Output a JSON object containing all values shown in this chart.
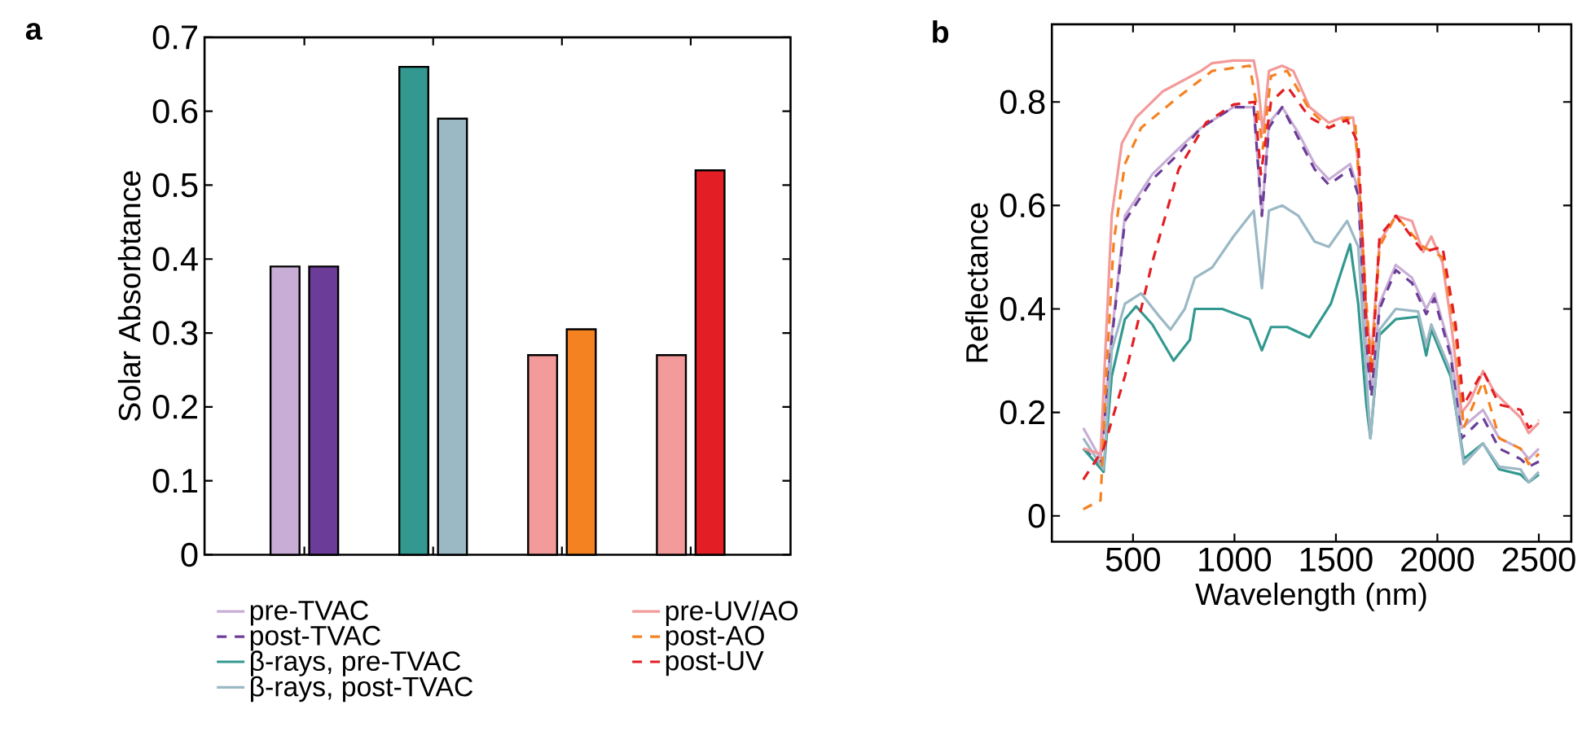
{
  "chart_data": [
    {
      "type": "bar",
      "title": "a",
      "ylabel": "Solar Absorbtance",
      "categories": [
        null,
        null,
        null,
        null
      ],
      "ylim": [
        0,
        0.7
      ],
      "yticks": [
        0,
        0.1,
        0.2,
        0.3,
        0.4,
        0.5,
        0.6,
        0.7
      ],
      "series": [
        {
          "colors": [
            "#c8aed6",
            "#339990",
            "#f39a9a",
            "#f39a9a"
          ],
          "values": [
            0.39,
            0.66,
            0.27,
            0.27
          ]
        },
        {
          "colors": [
            "#6b3d98",
            "#9bb8c5",
            "#f58220",
            "#e31e24"
          ],
          "values": [
            0.39,
            0.59,
            0.305,
            0.52
          ]
        }
      ]
    },
    {
      "type": "line",
      "title": "b",
      "xlabel": "Wavelength (nm)",
      "ylabel": "Reflectance",
      "xlim": [
        100,
        2660
      ],
      "ylim": [
        -0.05,
        0.95
      ],
      "xticks": [
        500,
        1000,
        1500,
        2000,
        2500
      ],
      "yticks": [
        0,
        0.2,
        0.4,
        0.6,
        0.8
      ],
      "legend": "bottom left",
      "series": [
        {
          "name": "pre-TVAC",
          "color": "#c8aed6",
          "line_style": "solid",
          "x": [
            255,
            340,
            395,
            460,
            595,
            725,
            835,
            995,
            1095,
            1135,
            1170,
            1235,
            1315,
            1395,
            1465,
            1570,
            1610,
            1650,
            1675,
            1715,
            1795,
            1875,
            1945,
            1985,
            2065,
            2120,
            2225,
            2305,
            2410,
            2450,
            2500
          ],
          "values": [
            0.17,
            0.11,
            0.35,
            0.58,
            0.66,
            0.71,
            0.75,
            0.79,
            0.79,
            0.58,
            0.76,
            0.79,
            0.74,
            0.68,
            0.65,
            0.68,
            0.63,
            0.33,
            0.24,
            0.41,
            0.485,
            0.46,
            0.4,
            0.43,
            0.32,
            0.17,
            0.205,
            0.15,
            0.13,
            0.11,
            0.13
          ]
        },
        {
          "name": "post-TVAC",
          "color": "#6b3d98",
          "line_style": "dashed",
          "x": [
            255,
            340,
            395,
            460,
            595,
            725,
            835,
            995,
            1095,
            1135,
            1170,
            1235,
            1315,
            1395,
            1465,
            1570,
            1610,
            1650,
            1675,
            1715,
            1795,
            1875,
            1945,
            1985,
            2065,
            2120,
            2225,
            2305,
            2410,
            2450,
            2500
          ],
          "values": [
            0.13,
            0.1,
            0.34,
            0.57,
            0.65,
            0.7,
            0.75,
            0.79,
            0.79,
            0.58,
            0.75,
            0.79,
            0.73,
            0.67,
            0.64,
            0.67,
            0.62,
            0.32,
            0.23,
            0.4,
            0.475,
            0.45,
            0.39,
            0.42,
            0.31,
            0.15,
            0.19,
            0.13,
            0.11,
            0.095,
            0.105
          ]
        },
        {
          "name": "β-rays, pre-TVAC",
          "color": "#339990",
          "line_style": "solid",
          "x": [
            255,
            355,
            395,
            460,
            515,
            595,
            700,
            780,
            805,
            940,
            1075,
            1135,
            1180,
            1260,
            1370,
            1475,
            1570,
            1610,
            1650,
            1670,
            1715,
            1795,
            1905,
            1945,
            1970,
            2065,
            2130,
            2225,
            2305,
            2410,
            2450,
            2500
          ],
          "values": [
            0.13,
            0.085,
            0.27,
            0.38,
            0.405,
            0.37,
            0.3,
            0.34,
            0.4,
            0.4,
            0.38,
            0.32,
            0.365,
            0.365,
            0.345,
            0.41,
            0.525,
            0.41,
            0.215,
            0.15,
            0.35,
            0.38,
            0.385,
            0.31,
            0.36,
            0.27,
            0.11,
            0.14,
            0.09,
            0.08,
            0.065,
            0.08
          ]
        },
        {
          "name": "β-rays, post-TVAC",
          "color": "#9bb8c5",
          "line_style": "solid",
          "x": [
            255,
            355,
            395,
            460,
            540,
            620,
            685,
            755,
            805,
            890,
            995,
            1095,
            1135,
            1170,
            1235,
            1315,
            1395,
            1465,
            1555,
            1610,
            1650,
            1670,
            1715,
            1795,
            1905,
            1945,
            1970,
            2065,
            2130,
            2225,
            2305,
            2410,
            2450,
            2500
          ],
          "values": [
            0.15,
            0.09,
            0.32,
            0.41,
            0.43,
            0.39,
            0.36,
            0.4,
            0.46,
            0.48,
            0.54,
            0.59,
            0.44,
            0.59,
            0.6,
            0.58,
            0.53,
            0.52,
            0.57,
            0.52,
            0.27,
            0.15,
            0.36,
            0.4,
            0.395,
            0.33,
            0.37,
            0.28,
            0.1,
            0.14,
            0.095,
            0.09,
            0.065,
            0.085
          ]
        },
        {
          "name": "pre-UV/AO",
          "color": "#f39a9a",
          "line_style": "solid",
          "x": [
            255,
            340,
            395,
            445,
            515,
            645,
            835,
            890,
            995,
            1095,
            1115,
            1140,
            1170,
            1235,
            1290,
            1370,
            1465,
            1530,
            1585,
            1610,
            1650,
            1675,
            1715,
            1795,
            1875,
            1930,
            1970,
            2025,
            2065,
            2120,
            2160,
            2225,
            2280,
            2330,
            2410,
            2450,
            2500
          ],
          "values": [
            0.13,
            0.12,
            0.58,
            0.72,
            0.77,
            0.82,
            0.86,
            0.875,
            0.88,
            0.88,
            0.84,
            0.74,
            0.86,
            0.87,
            0.86,
            0.79,
            0.76,
            0.77,
            0.77,
            0.68,
            0.39,
            0.31,
            0.53,
            0.58,
            0.57,
            0.51,
            0.54,
            0.49,
            0.38,
            0.2,
            0.22,
            0.28,
            0.24,
            0.22,
            0.19,
            0.16,
            0.18
          ]
        },
        {
          "name": "post-AO",
          "color": "#f58220",
          "line_style": "dashed",
          "x": [
            255,
            340,
            365,
            405,
            460,
            540,
            725,
            890,
            1075,
            1115,
            1140,
            1180,
            1260,
            1370,
            1465,
            1555,
            1595,
            1650,
            1675,
            1715,
            1795,
            1930,
            2025,
            2090,
            2130,
            2225,
            2305,
            2410,
            2450,
            2500
          ],
          "values": [
            0.013,
            0.03,
            0.25,
            0.53,
            0.68,
            0.75,
            0.81,
            0.86,
            0.87,
            0.78,
            0.71,
            0.85,
            0.86,
            0.785,
            0.75,
            0.77,
            0.76,
            0.41,
            0.28,
            0.52,
            0.58,
            0.52,
            0.5,
            0.35,
            0.17,
            0.26,
            0.15,
            0.13,
            0.1,
            0.12
          ]
        },
        {
          "name": "post-UV",
          "color": "#e31e24",
          "line_style": "dashed",
          "x": [
            255,
            355,
            460,
            595,
            725,
            860,
            995,
            1100,
            1130,
            1180,
            1260,
            1370,
            1465,
            1555,
            1610,
            1650,
            1675,
            1715,
            1795,
            1930,
            2025,
            2090,
            2130,
            2225,
            2305,
            2410,
            2450,
            2500
          ],
          "values": [
            0.07,
            0.13,
            0.27,
            0.49,
            0.67,
            0.76,
            0.795,
            0.8,
            0.66,
            0.8,
            0.83,
            0.77,
            0.75,
            0.765,
            0.72,
            0.37,
            0.27,
            0.54,
            0.58,
            0.51,
            0.52,
            0.37,
            0.215,
            0.28,
            0.215,
            0.205,
            0.17,
            0.185
          ]
        }
      ]
    }
  ]
}
